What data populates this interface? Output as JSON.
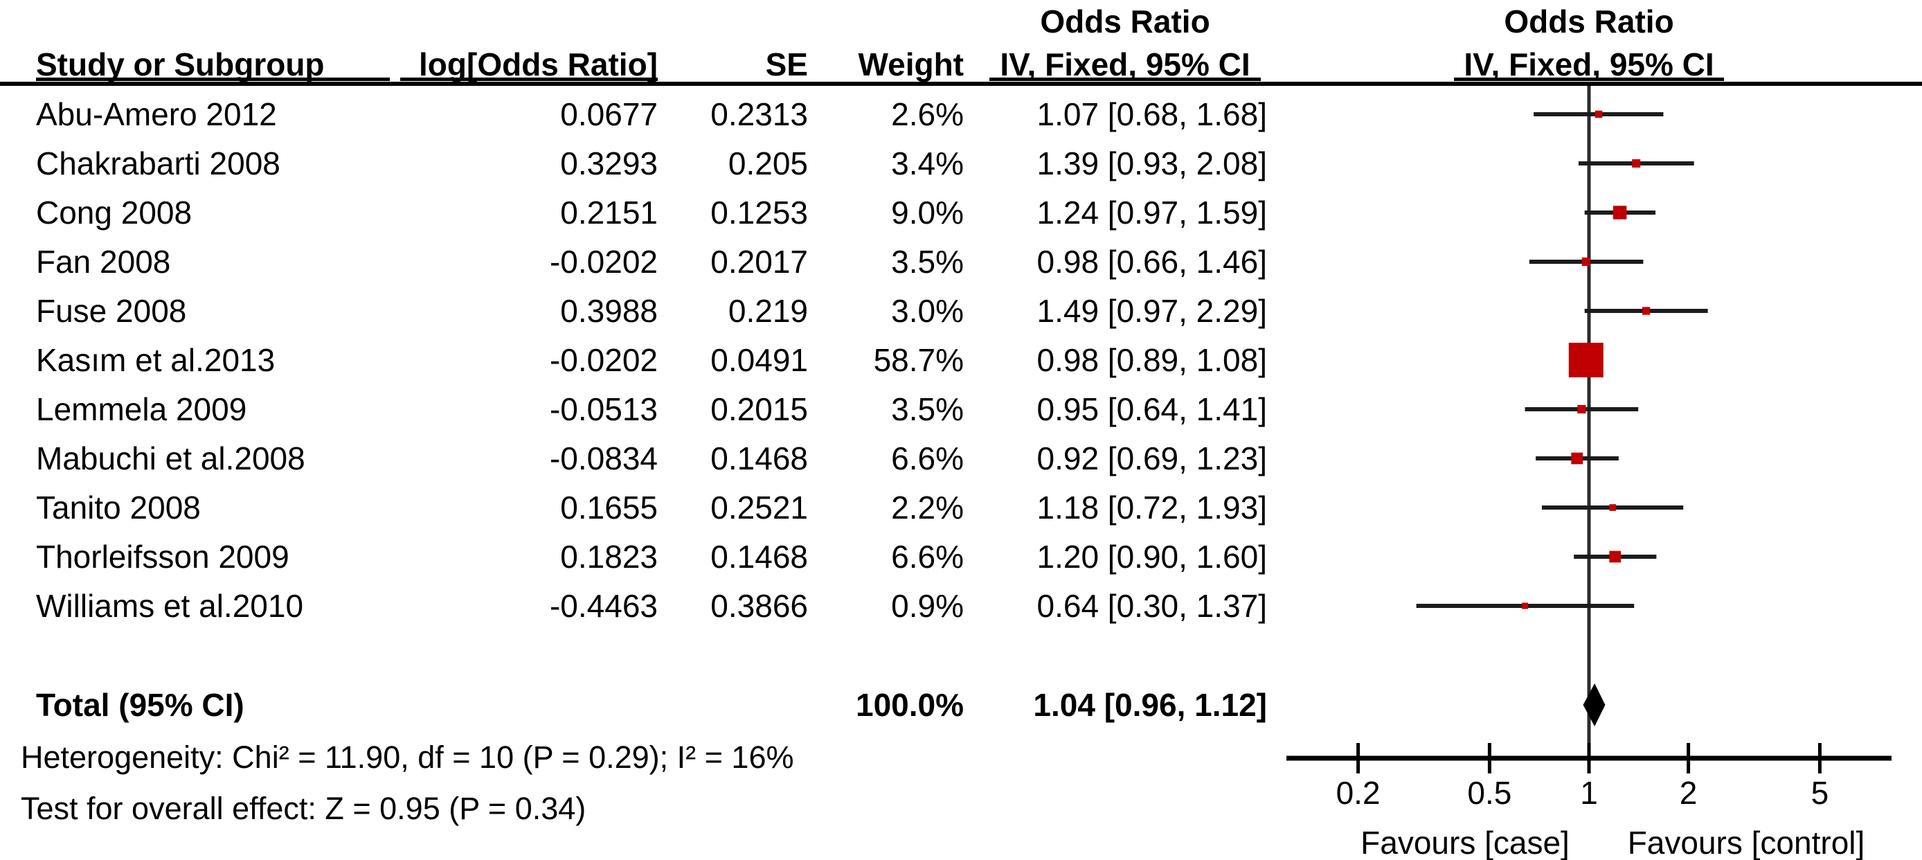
{
  "header": {
    "col_study": "Study or Subgroup",
    "col_log_or": "log[Odds Ratio]",
    "col_se": "SE",
    "col_weight": "Weight",
    "or_text_col_line1": "Odds Ratio",
    "or_text_col_line2": "IV, Fixed, 95% CI",
    "or_plot_col_line1": "Odds Ratio",
    "or_plot_col_line2": "IV, Fixed, 95% CI"
  },
  "chart_data": {
    "type": "forest",
    "effect_measure": "Odds Ratio",
    "model": "IV, Fixed, 95% CI",
    "x_scale": "log",
    "axis_ticks": [
      0.2,
      0.5,
      1,
      2,
      5
    ],
    "axis_range": [
      0.12,
      8.2
    ],
    "favours_left": "Favours [case]",
    "favours_right": "Favours [control]",
    "studies": [
      {
        "name": "Abu-Amero 2012",
        "log_or": "0.0677",
        "se": "0.2313",
        "weight": "2.6%",
        "ci_label": "1.07 [0.68, 1.68]",
        "or": 1.07,
        "low": 0.68,
        "high": 1.68,
        "weight_pct": 2.6
      },
      {
        "name": "Chakrabarti 2008",
        "log_or": "0.3293",
        "se": "0.205",
        "weight": "3.4%",
        "ci_label": "1.39 [0.93, 2.08]",
        "or": 1.39,
        "low": 0.93,
        "high": 2.08,
        "weight_pct": 3.4
      },
      {
        "name": "Cong 2008",
        "log_or": "0.2151",
        "se": "0.1253",
        "weight": "9.0%",
        "ci_label": "1.24 [0.97, 1.59]",
        "or": 1.24,
        "low": 0.97,
        "high": 1.59,
        "weight_pct": 9.0
      },
      {
        "name": "Fan 2008",
        "log_or": "-0.0202",
        "se": "0.2017",
        "weight": "3.5%",
        "ci_label": "0.98 [0.66, 1.46]",
        "or": 0.98,
        "low": 0.66,
        "high": 1.46,
        "weight_pct": 3.5
      },
      {
        "name": "Fuse 2008",
        "log_or": "0.3988",
        "se": "0.219",
        "weight": "3.0%",
        "ci_label": "1.49 [0.97, 2.29]",
        "or": 1.49,
        "low": 0.97,
        "high": 2.29,
        "weight_pct": 3.0
      },
      {
        "name": "Kasım et al.2013",
        "log_or": "-0.0202",
        "se": "0.0491",
        "weight": "58.7%",
        "ci_label": "0.98 [0.89, 1.08]",
        "or": 0.98,
        "low": 0.89,
        "high": 1.08,
        "weight_pct": 58.7
      },
      {
        "name": "Lemmela 2009",
        "log_or": "-0.0513",
        "se": "0.2015",
        "weight": "3.5%",
        "ci_label": "0.95 [0.64, 1.41]",
        "or": 0.95,
        "low": 0.64,
        "high": 1.41,
        "weight_pct": 3.5
      },
      {
        "name": "Mabuchi et al.2008",
        "log_or": "-0.0834",
        "se": "0.1468",
        "weight": "6.6%",
        "ci_label": "0.92 [0.69, 1.23]",
        "or": 0.92,
        "low": 0.69,
        "high": 1.23,
        "weight_pct": 6.6
      },
      {
        "name": "Tanito 2008",
        "log_or": "0.1655",
        "se": "0.2521",
        "weight": "2.2%",
        "ci_label": "1.18 [0.72, 1.93]",
        "or": 1.18,
        "low": 0.72,
        "high": 1.93,
        "weight_pct": 2.2
      },
      {
        "name": "Thorleifsson 2009",
        "log_or": "0.1823",
        "se": "0.1468",
        "weight": "6.6%",
        "ci_label": "1.20 [0.90, 1.60]",
        "or": 1.2,
        "low": 0.9,
        "high": 1.6,
        "weight_pct": 6.6
      },
      {
        "name": "Williams et al.2010",
        "log_or": "-0.4463",
        "se": "0.3866",
        "weight": "0.9%",
        "ci_label": "0.64 [0.30, 1.37]",
        "or": 0.64,
        "low": 0.3,
        "high": 1.37,
        "weight_pct": 0.9
      }
    ],
    "total": {
      "name": "Total (95% CI)",
      "weight": "100.0%",
      "ci_label": "1.04 [0.96, 1.12]",
      "or": 1.04,
      "low": 0.96,
      "high": 1.12
    },
    "heterogeneity": "Heterogeneity: Chi² = 11.90, df = 10 (P = 0.29); I² = 16%",
    "overall_test": "Test for overall effect: Z = 0.95 (P = 0.34)"
  },
  "colors": {
    "marker": "#c00000",
    "ci_line": "#1c1c1c",
    "diamond": "#000000",
    "axis": "#000000",
    "text": "#000000"
  }
}
